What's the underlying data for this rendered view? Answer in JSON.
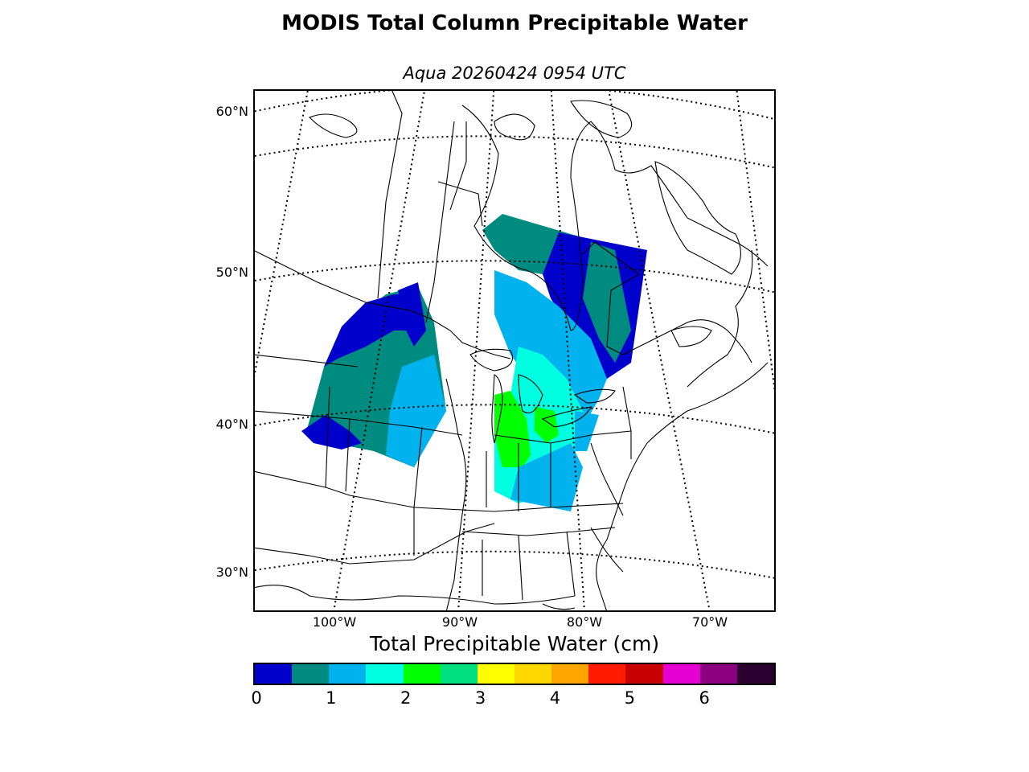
{
  "title": "MODIS Total Column Precipitable Water",
  "subtitle": "Aqua 20260424 0954 UTC",
  "map": {
    "lat_labels": [
      "60°N",
      "50°N",
      "40°N",
      "30°N"
    ],
    "lon_labels": [
      "100°W",
      "90°W",
      "80°W",
      "70°W"
    ]
  },
  "colorbar": {
    "label": "Total Precipitable Water (cm)",
    "min": 0,
    "max": 7,
    "step": 0.5,
    "colors": [
      "#0000cd",
      "#008b80",
      "#00b2ee",
      "#00ffe0",
      "#00ff00",
      "#00e080",
      "#ffff00",
      "#ffd700",
      "#ffa500",
      "#ff1a00",
      "#c80000",
      "#e600d2",
      "#8b0080",
      "#2a0030"
    ],
    "ticks": [
      "0",
      "1",
      "2",
      "3",
      "4",
      "5",
      "6"
    ]
  }
}
